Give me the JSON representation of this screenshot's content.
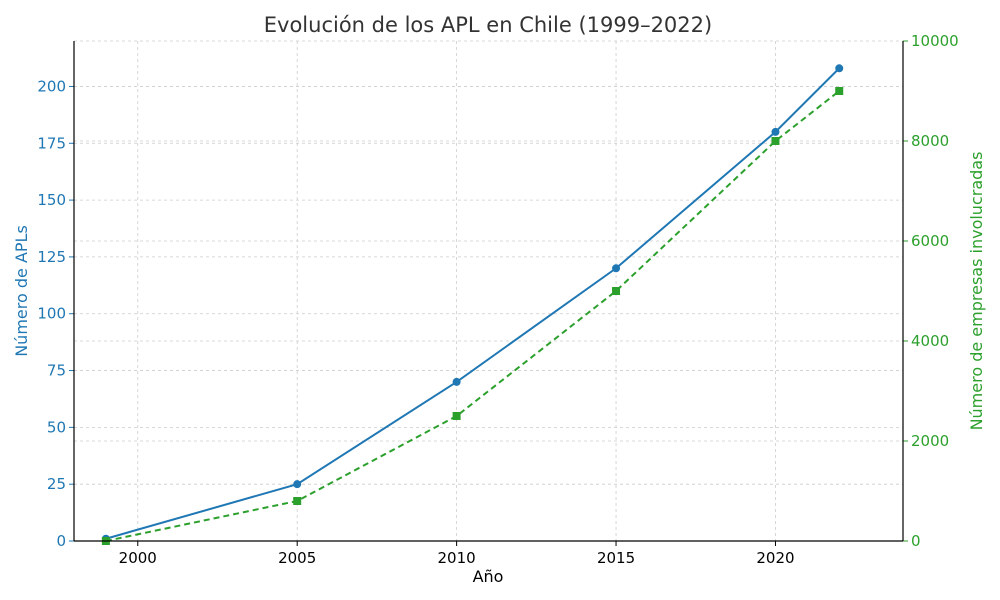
{
  "chart_data": {
    "type": "line",
    "title": "Evolución de los APL en Chile (1999–2022)",
    "xlabel": "Año",
    "ylabel": "Número de APLs",
    "y2label": "Número de empresas involucradas",
    "x": [
      1999,
      2005,
      2010,
      2015,
      2020,
      2022
    ],
    "xlim": [
      1998,
      2024
    ],
    "xticks": [
      2000,
      2005,
      2010,
      2015,
      2020
    ],
    "ylim": [
      0,
      220
    ],
    "yticks": [
      0,
      25,
      50,
      75,
      100,
      125,
      150,
      175,
      200
    ],
    "y2lim": [
      0,
      10000
    ],
    "y2ticks": [
      0,
      2000,
      4000,
      6000,
      8000,
      10000
    ],
    "grid": true,
    "series": [
      {
        "axis": "left",
        "values": [
          1,
          25,
          70,
          120,
          180,
          208
        ],
        "color": "#1f77b4",
        "style": "solid",
        "marker": "circle"
      },
      {
        "axis": "right",
        "values": [
          0,
          800,
          2500,
          5000,
          8000,
          9000
        ],
        "color": "#2ca02c",
        "style": "dashed",
        "marker": "square"
      }
    ],
    "colors": {
      "left_axis": "#1f77b4",
      "right_axis": "#2ca02c"
    }
  }
}
